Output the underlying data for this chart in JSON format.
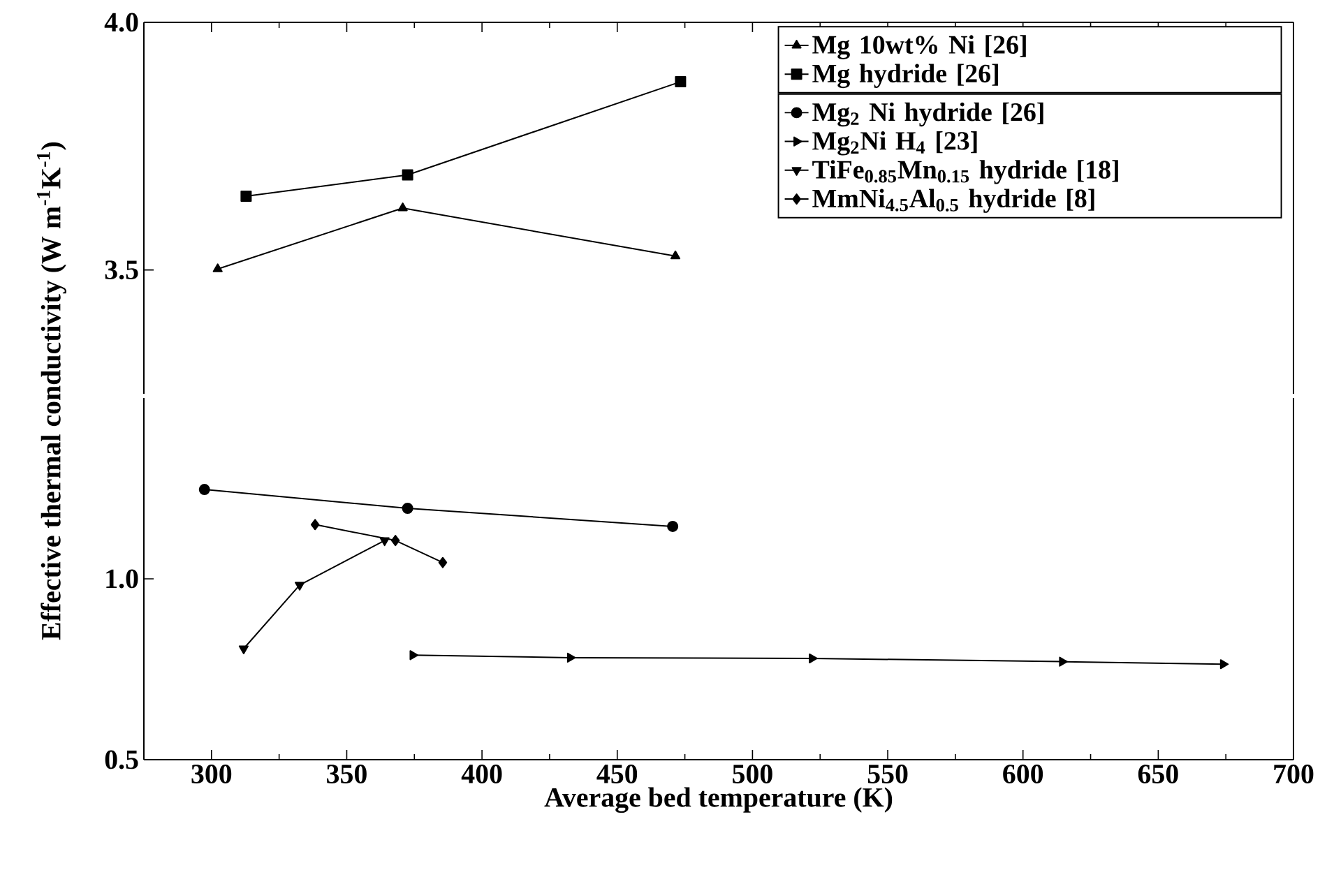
{
  "chart_data": [
    {
      "type": "line",
      "xlim": [
        275,
        700
      ],
      "xticks": [
        300,
        350,
        400,
        450,
        500,
        550,
        600,
        650,
        700
      ],
      "ylim": [
        3.25,
        4.0
      ],
      "yticks": [
        3.5,
        {
          "value": 4.0,
          "label": "4.0"
        }
      ],
      "tick_labels": "y",
      "legend": "top right",
      "series": [
        {
          "name": "Mg 10wt% Ni [26]",
          "color": "#000000",
          "marker": "triangle",
          "x": [
            302.3,
            370.7,
            471.5
          ],
          "values": [
            3.502,
            3.625,
            3.528
          ]
        },
        {
          "name": "Mg hydride [26]",
          "color": "#000000",
          "marker": "square",
          "x": [
            312.8,
            372.5,
            473.4
          ],
          "values": [
            3.649,
            3.692,
            3.88
          ]
        }
      ]
    },
    {
      "type": "line",
      "xlim": [
        275,
        700
      ],
      "xticks": [
        300,
        350,
        400,
        450,
        500,
        550,
        600,
        650,
        700
      ],
      "ylim": [
        0.5,
        1.5
      ],
      "legend": "top right",
      "yticks": [
        0.5,
        {
          "value": 1.0,
          "label": "1.0"
        }
      ],
      "xlabel": "Average bed temperature (K)",
      "ylabel": "Effective thermal conductivity (W m$^{-1}$K$^{-1}$)",
      "series": [
        {
          "name": "Mg$_{2}$ Ni hydride [26]",
          "color": "#000000",
          "marker": "circle",
          "x": [
            297.4,
            372.5,
            470.5
          ],
          "values": [
            1.247,
            1.195,
            1.145
          ]
        },
        {
          "name": "Mg$_{2}$Ni H$_{4}$ [23]",
          "color": "#000000",
          "marker": "triangle-right",
          "x": [
            374.4,
            432.6,
            522,
            614.5,
            674
          ],
          "values": [
            0.789,
            0.782,
            0.78,
            0.771,
            0.764
          ]
        },
        {
          "name": "TiFe$_{0.85}$Mn$_{0.15}$ hydride [18]",
          "color": "#000000",
          "marker": "triangle-down",
          "x": [
            311.9,
            332.6,
            364
          ],
          "values": [
            0.807,
            0.983,
            1.106
          ]
        },
        {
          "name": "MmNi$_{4.5}$Al$_{0.5}$ hydride [8]",
          "color": "#000000",
          "marker": "diamond",
          "x": [
            338.3,
            368,
            385.5
          ],
          "values": [
            1.15,
            1.106,
            1.045
          ]
        }
      ]
    }
  ]
}
